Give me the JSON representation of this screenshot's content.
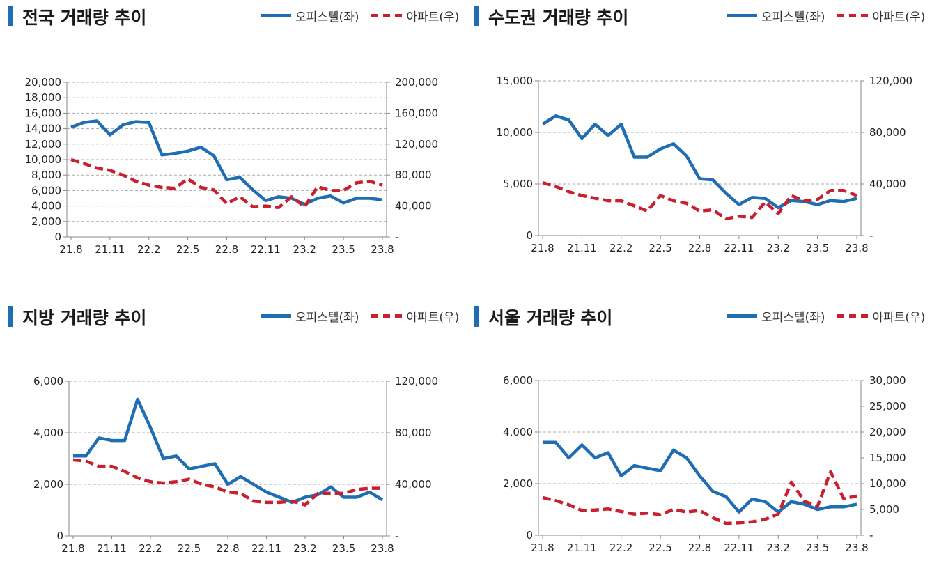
{
  "chart_data": [
    {
      "type": "line",
      "title": "전국 거래량 추이",
      "categories": [
        "21.8",
        "21.9",
        "21.10",
        "21.11",
        "21.12",
        "22.1",
        "22.2",
        "22.3",
        "22.4",
        "22.5",
        "22.6",
        "22.7",
        "22.8",
        "22.9",
        "22.10",
        "22.11",
        "22.12",
        "23.1",
        "23.2",
        "23.3",
        "23.4",
        "23.5",
        "23.6",
        "23.7",
        "23.8"
      ],
      "x_tick_labels": [
        "21.8",
        "21.11",
        "22.2",
        "22.5",
        "22.8",
        "22.11",
        "23.2",
        "23.5",
        "23.8"
      ],
      "y_left": {
        "min": 0,
        "max": 20000,
        "ticks": [
          "0",
          "2,000",
          "4,000",
          "6,000",
          "8,000",
          "10,000",
          "12,000",
          "14,000",
          "16,000",
          "18,000",
          "20,000"
        ]
      },
      "y_right": {
        "min": 0,
        "max": 200000,
        "ticks": [
          "-",
          "40,000",
          "80,000",
          "120,000",
          "160,000",
          "200,000"
        ]
      },
      "series": [
        {
          "name": "오피스텔(좌)",
          "axis": "left",
          "color": "#1f6db3",
          "style": "solid",
          "values": [
            14200,
            14800,
            15000,
            13200,
            14500,
            14900,
            14800,
            10600,
            10800,
            11100,
            11600,
            10500,
            7400,
            7700,
            6100,
            4700,
            5200,
            5000,
            4200,
            5000,
            5300,
            4400,
            5000,
            5000,
            4800
          ]
        },
        {
          "name": "아파트(우)",
          "axis": "right",
          "color": "#c8202e",
          "style": "dashed",
          "values": [
            100000,
            95000,
            89000,
            86000,
            80000,
            72000,
            67000,
            64000,
            63000,
            75000,
            64000,
            61000,
            43000,
            52000,
            39000,
            40000,
            38000,
            52000,
            39000,
            65000,
            60000,
            60000,
            70000,
            72000,
            67000
          ]
        }
      ]
    },
    {
      "type": "line",
      "title": "수도권 거래량 추이",
      "categories": [
        "21.8",
        "21.9",
        "21.10",
        "21.11",
        "21.12",
        "22.1",
        "22.2",
        "22.3",
        "22.4",
        "22.5",
        "22.6",
        "22.7",
        "22.8",
        "22.9",
        "22.10",
        "22.11",
        "22.12",
        "23.1",
        "23.2",
        "23.3",
        "23.4",
        "23.5",
        "23.6",
        "23.7",
        "23.8"
      ],
      "x_tick_labels": [
        "21.8",
        "21.11",
        "22.2",
        "22.5",
        "22.8",
        "22.11",
        "23.2",
        "23.5",
        "23.8"
      ],
      "y_left": {
        "min": 0,
        "max": 15000,
        "ticks": [
          "0",
          "5,000",
          "10,000",
          "15,000"
        ]
      },
      "y_right": {
        "min": 0,
        "max": 120000,
        "ticks": [
          "-",
          "40,000",
          "80,000",
          "120,000"
        ]
      },
      "series": [
        {
          "name": "오피스텔(좌)",
          "axis": "left",
          "color": "#1f6db3",
          "style": "solid",
          "values": [
            10800,
            11600,
            11200,
            9400,
            10800,
            9700,
            10800,
            7600,
            7600,
            8400,
            8900,
            7700,
            5500,
            5400,
            4100,
            3000,
            3700,
            3600,
            2700,
            3400,
            3300,
            3000,
            3400,
            3300,
            3600
          ]
        },
        {
          "name": "아파트(우)",
          "axis": "right",
          "color": "#c8202e",
          "style": "dashed",
          "values": [
            41000,
            38000,
            34000,
            31000,
            29000,
            27000,
            27000,
            23000,
            19000,
            31000,
            27000,
            25000,
            19000,
            20000,
            13000,
            15000,
            14000,
            26000,
            17000,
            31000,
            27000,
            28000,
            35000,
            35000,
            31000
          ]
        }
      ]
    },
    {
      "type": "line",
      "title": "지방 거래량 추이",
      "categories": [
        "21.8",
        "21.9",
        "21.10",
        "21.11",
        "21.12",
        "22.1",
        "22.2",
        "22.3",
        "22.4",
        "22.5",
        "22.6",
        "22.7",
        "22.8",
        "22.9",
        "22.10",
        "22.11",
        "22.12",
        "23.1",
        "23.2",
        "23.3",
        "23.4",
        "23.5",
        "23.6",
        "23.7",
        "23.8"
      ],
      "x_tick_labels": [
        "21.8",
        "21.11",
        "22.2",
        "22.5",
        "22.8",
        "22.11",
        "23.2",
        "23.5",
        "23.8"
      ],
      "y_left": {
        "min": 0,
        "max": 6000,
        "ticks": [
          "0",
          "2,000",
          "4,000",
          "6,000"
        ]
      },
      "y_right": {
        "min": 0,
        "max": 120000,
        "ticks": [
          "-",
          "40,000",
          "80,000",
          "120,000"
        ]
      },
      "series": [
        {
          "name": "오피스텔(좌)",
          "axis": "left",
          "color": "#1f6db3",
          "style": "solid",
          "values": [
            3100,
            3100,
            3800,
            3700,
            3700,
            5300,
            4200,
            3000,
            3100,
            2600,
            2700,
            2800,
            2000,
            2300,
            2000,
            1700,
            1500,
            1300,
            1500,
            1600,
            1900,
            1500,
            1500,
            1700,
            1400
          ]
        },
        {
          "name": "아파트(우)",
          "axis": "right",
          "color": "#c8202e",
          "style": "dashed",
          "values": [
            59000,
            58000,
            54000,
            54000,
            50000,
            45000,
            42000,
            41000,
            42000,
            44000,
            40000,
            38000,
            34000,
            33000,
            27000,
            26000,
            26000,
            27000,
            24000,
            33000,
            33000,
            33000,
            36000,
            37000,
            37000
          ]
        }
      ]
    },
    {
      "type": "line",
      "title": "서울 거래량 추이",
      "categories": [
        "21.8",
        "21.9",
        "21.10",
        "21.11",
        "21.12",
        "22.1",
        "22.2",
        "22.3",
        "22.4",
        "22.5",
        "22.6",
        "22.7",
        "22.8",
        "22.9",
        "22.10",
        "22.11",
        "22.12",
        "23.1",
        "23.2",
        "23.3",
        "23.4",
        "23.5",
        "23.6",
        "23.7",
        "23.8"
      ],
      "x_tick_labels": [
        "21.8",
        "21.11",
        "22.2",
        "22.5",
        "22.8",
        "22.11",
        "23.2",
        "23.5",
        "23.8"
      ],
      "y_left": {
        "min": 0,
        "max": 6000,
        "ticks": [
          "0",
          "2,000",
          "4,000",
          "6,000"
        ]
      },
      "y_right": {
        "min": 0,
        "max": 30000,
        "ticks": [
          "-",
          "5,000",
          "10,000",
          "15,000",
          "20,000",
          "25,000",
          "30,000"
        ]
      },
      "series": [
        {
          "name": "오피스텔(좌)",
          "axis": "left",
          "color": "#1f6db3",
          "style": "solid",
          "values": [
            3600,
            3600,
            3000,
            3500,
            3000,
            3200,
            2300,
            2700,
            2600,
            2500,
            3300,
            3000,
            2300,
            1700,
            1500,
            900,
            1400,
            1300,
            900,
            1300,
            1200,
            1000,
            1100,
            1100,
            1200
          ]
        },
        {
          "name": "아파트(우)",
          "axis": "right",
          "color": "#c8202e",
          "style": "dashed",
          "values": [
            7300,
            6700,
            5900,
            4800,
            4900,
            5100,
            4600,
            4100,
            4300,
            4000,
            5000,
            4500,
            4800,
            3400,
            2300,
            2400,
            2600,
            3100,
            4100,
            10300,
            6600,
            5600,
            12300,
            7100,
            7600
          ]
        }
      ]
    }
  ],
  "legend": {
    "office_label": "오피스텔(좌)",
    "apt_label": "아파트(우)"
  },
  "colors": {
    "office": "#1f6db3",
    "apt": "#c8202e",
    "grid": "#aaaaaa",
    "axis": "#888888",
    "title_bar": "#1f6db3"
  }
}
